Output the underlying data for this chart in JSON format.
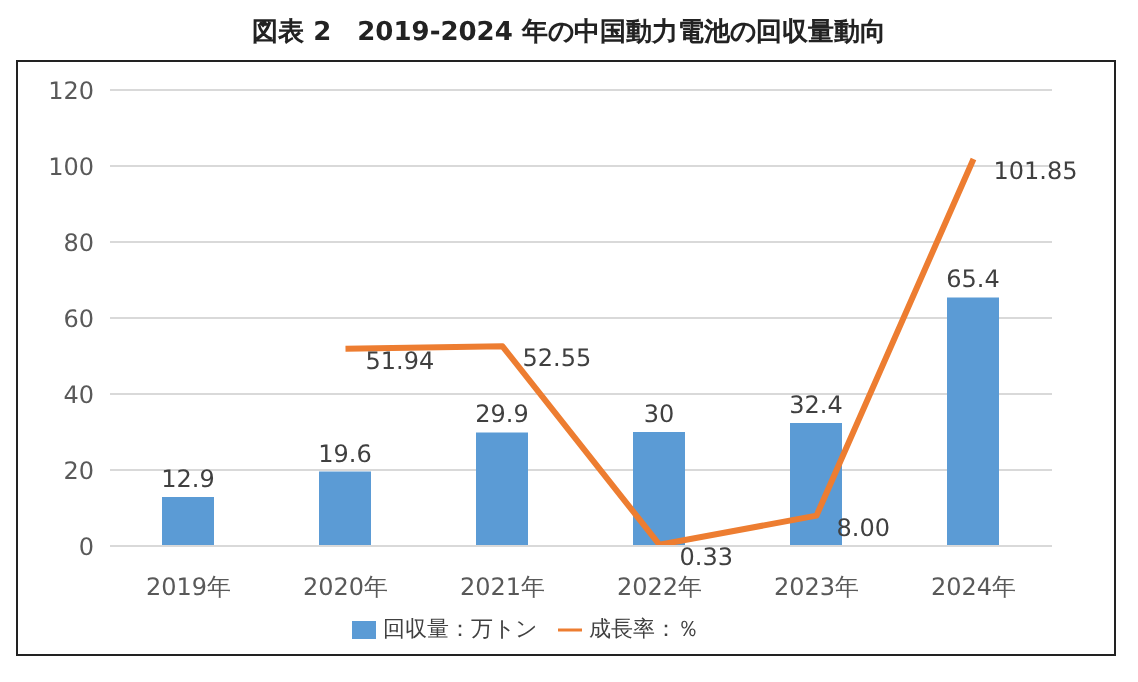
{
  "chart_data": {
    "type": "bar",
    "title": "図表 2　2019-2024 年の中国動力電池の回収量動向",
    "categories": [
      "2019年",
      "2020年",
      "2021年",
      "2022年",
      "2023年",
      "2024年"
    ],
    "series": [
      {
        "name": "回収量：万トン",
        "color": "#5b9bd5",
        "values": [
          12.9,
          19.6,
          29.9,
          30,
          32.4,
          65.4
        ]
      },
      {
        "name": "成長率：％",
        "type": "line",
        "color": "#ed7d31",
        "values": [
          null,
          51.94,
          52.55,
          0.33,
          8.0,
          101.85
        ],
        "value_labels": [
          null,
          "51.94",
          "52.55",
          "0.33",
          "8.00",
          "101.85"
        ]
      }
    ],
    "ylim": [
      0,
      120
    ],
    "yticks": [
      0,
      20,
      40,
      60,
      80,
      100,
      120
    ],
    "grid": "y",
    "legend": "bottom",
    "data_labels": true,
    "marker": "none"
  }
}
